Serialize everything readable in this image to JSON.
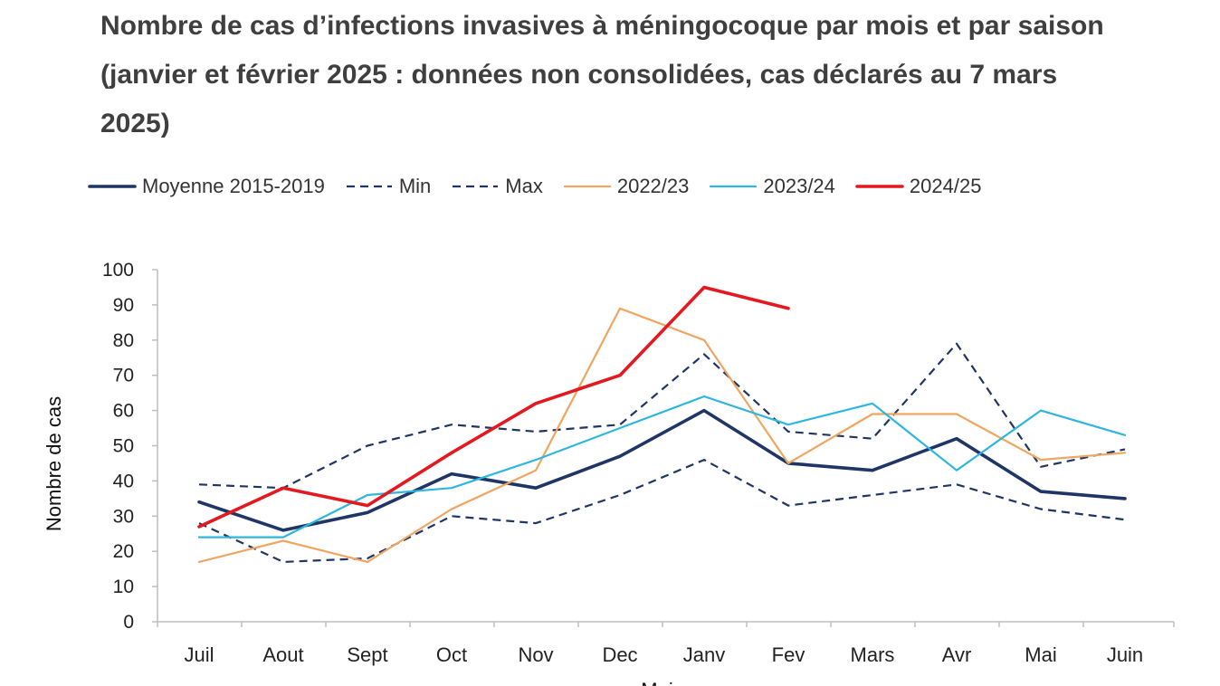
{
  "chart_data": {
    "type": "line",
    "title": "Nombre de cas d’infections invasives à méningocoque par mois et par saison (janvier et février 2025 : données non consolidées, cas déclarés au 7 mars 2025)",
    "xlabel": "Mois",
    "ylabel": "Nombre de cas",
    "ylim": [
      0,
      100
    ],
    "yticks": [
      0,
      10,
      20,
      30,
      40,
      50,
      60,
      70,
      80,
      90,
      100
    ],
    "categories": [
      "Juil",
      "Aout",
      "Sept",
      "Oct",
      "Nov",
      "Dec",
      "Janv",
      "Fev",
      "Mars",
      "Avr",
      "Mai",
      "Juin"
    ],
    "legend_position": "top",
    "grid": false,
    "series": [
      {
        "name": "Moyenne 2015-2019",
        "color": "#1f3566",
        "style": "solid-bold",
        "values": [
          34,
          26,
          31,
          42,
          38,
          47,
          60,
          45,
          43,
          52,
          37,
          35
        ]
      },
      {
        "name": "Min",
        "color": "#1f3566",
        "style": "dashed",
        "values": [
          28,
          17,
          18,
          30,
          28,
          36,
          46,
          33,
          36,
          39,
          32,
          29
        ]
      },
      {
        "name": "Max",
        "color": "#1f3566",
        "style": "dashed",
        "values": [
          39,
          38,
          50,
          56,
          54,
          56,
          76,
          54,
          52,
          79,
          44,
          49
        ]
      },
      {
        "name": "2022/23",
        "color": "#f0a561",
        "style": "solid",
        "values": [
          17,
          23,
          17,
          32,
          43,
          89,
          80,
          45,
          59,
          59,
          46,
          48
        ]
      },
      {
        "name": "2023/24",
        "color": "#2eb6de",
        "style": "solid",
        "values": [
          24,
          24,
          36,
          38,
          46,
          55,
          64,
          56,
          62,
          43,
          60,
          53
        ]
      },
      {
        "name": "2024/25",
        "color": "#e3191f",
        "style": "solid-bold",
        "values": [
          27,
          38,
          33,
          48,
          62,
          70,
          95,
          89,
          null,
          null,
          null,
          null
        ]
      }
    ]
  }
}
